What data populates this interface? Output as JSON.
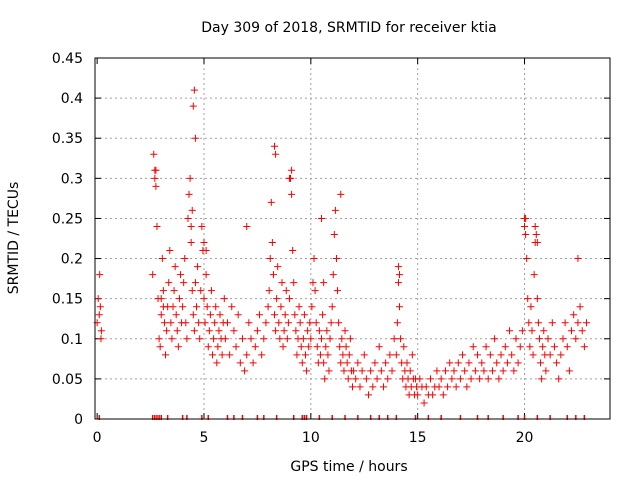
{
  "chart_data": {
    "type": "scatter",
    "title": "Day 309 of 2018, SRMTID for receiver ktia",
    "xlabel": "GPS time / hours",
    "ylabel": "SRMTID / TECUs",
    "xlim": [
      -0.1,
      24
    ],
    "ylim": [
      0,
      0.45
    ],
    "x_ticks": [
      0,
      5,
      10,
      15,
      20
    ],
    "x_tick_labels": [
      "0",
      "5",
      "10",
      "15",
      "20"
    ],
    "y_ticks": [
      0,
      0.05,
      0.1,
      0.15,
      0.2,
      0.25,
      0.3,
      0.35,
      0.4,
      0.45
    ],
    "y_tick_labels": [
      "0",
      "0.05",
      "0.1",
      "0.15",
      "0.2",
      "0.25",
      "0.3",
      "0.35",
      "0.4",
      "0.45"
    ],
    "grid": true,
    "marker": "+",
    "marker_color": "#ff0000",
    "series": [
      {
        "name": "SRMTID",
        "x": [
          0.0,
          0.05,
          0.1,
          0.12,
          0.15,
          0.18,
          0.2,
          2.6,
          2.65,
          2.7,
          2.75,
          2.8,
          2.85,
          2.9,
          2.95,
          3.0,
          3.05,
          3.1,
          3.15,
          3.2,
          3.25,
          3.3,
          3.35,
          3.4,
          3.45,
          3.5,
          3.55,
          3.6,
          3.65,
          3.7,
          3.75,
          3.8,
          3.85,
          3.9,
          3.95,
          4.0,
          4.05,
          4.1,
          4.15,
          4.2,
          4.25,
          4.3,
          4.35,
          4.4,
          4.45,
          4.5,
          4.55,
          4.6,
          4.65,
          4.7,
          4.75,
          4.8,
          4.85,
          4.9,
          4.95,
          5.0,
          5.05,
          5.1,
          5.15,
          5.2,
          5.25,
          5.3,
          5.35,
          5.4,
          5.45,
          5.5,
          5.55,
          5.6,
          5.65,
          5.7,
          5.75,
          5.8,
          5.85,
          5.9,
          5.95,
          6.0,
          6.1,
          6.2,
          6.3,
          6.4,
          6.5,
          6.6,
          6.7,
          6.8,
          6.9,
          7.0,
          7.1,
          7.2,
          7.3,
          7.4,
          7.5,
          7.6,
          7.7,
          7.8,
          7.9,
          8.0,
          8.05,
          8.1,
          8.15,
          8.2,
          8.25,
          8.3,
          8.35,
          8.4,
          8.45,
          8.5,
          8.55,
          8.6,
          8.65,
          8.7,
          8.75,
          8.8,
          8.85,
          8.9,
          8.95,
          9.0,
          9.05,
          9.1,
          9.15,
          9.2,
          9.25,
          9.3,
          9.35,
          9.4,
          9.45,
          9.5,
          9.55,
          9.6,
          9.65,
          9.7,
          9.75,
          9.8,
          9.85,
          9.9,
          9.95,
          10.0,
          10.05,
          10.1,
          10.15,
          10.2,
          10.25,
          10.3,
          10.35,
          10.4,
          10.45,
          10.5,
          10.55,
          10.6,
          10.65,
          10.7,
          10.75,
          10.8,
          10.85,
          10.9,
          10.95,
          11.0,
          11.05,
          11.1,
          11.15,
          11.2,
          11.25,
          11.3,
          11.35,
          11.4,
          11.45,
          11.5,
          11.55,
          11.6,
          11.65,
          11.7,
          11.75,
          11.8,
          11.85,
          11.9,
          11.95,
          12.0,
          12.1,
          12.2,
          12.3,
          12.4,
          12.5,
          12.6,
          12.7,
          12.8,
          12.9,
          13.0,
          13.1,
          13.2,
          13.3,
          13.4,
          13.5,
          13.6,
          13.7,
          13.8,
          13.9,
          14.0,
          14.05,
          14.1,
          14.15,
          14.2,
          14.25,
          14.3,
          14.35,
          14.4,
          14.45,
          14.5,
          14.55,
          14.6,
          14.65,
          14.7,
          14.75,
          14.8,
          14.85,
          14.9,
          14.95,
          15.0,
          15.1,
          15.2,
          15.3,
          15.4,
          15.5,
          15.6,
          15.7,
          15.8,
          15.9,
          16.0,
          16.1,
          16.2,
          16.3,
          16.4,
          16.5,
          16.6,
          16.7,
          16.8,
          16.9,
          17.0,
          17.1,
          17.2,
          17.3,
          17.4,
          17.5,
          17.6,
          17.7,
          17.8,
          17.9,
          18.0,
          18.1,
          18.2,
          18.3,
          18.4,
          18.5,
          18.6,
          18.7,
          18.8,
          18.9,
          19.0,
          19.1,
          19.2,
          19.3,
          19.4,
          19.5,
          19.6,
          19.7,
          19.8,
          19.9,
          20.0,
          20.05,
          20.1,
          20.15,
          20.2,
          20.25,
          20.3,
          20.35,
          20.4,
          20.45,
          20.5,
          20.55,
          20.6,
          20.65,
          20.7,
          20.75,
          20.8,
          20.85,
          20.9,
          20.95,
          21.0,
          21.1,
          21.2,
          21.3,
          21.4,
          21.5,
          21.6,
          21.7,
          21.8,
          21.9,
          22.0,
          22.1,
          22.2,
          22.3,
          22.4,
          22.5,
          22.6,
          22.7,
          22.8,
          22.9,
          4.5,
          4.55,
          4.6,
          8.3,
          8.35,
          9.0,
          9.1,
          11.4,
          14.1,
          14.15,
          20.0,
          20.05,
          20.5,
          20.6,
          22.5,
          2.7,
          2.75,
          3.0,
          3.1,
          4.4,
          4.45,
          5.0,
          5.1,
          7.0,
          10.5,
          10.6
        ],
        "y": [
          0.12,
          0.15,
          0.13,
          0.18,
          0.14,
          0.1,
          0.11,
          0.18,
          0.33,
          0.31,
          0.29,
          0.24,
          0.15,
          0.1,
          0.09,
          0.13,
          0.2,
          0.16,
          0.12,
          0.08,
          0.11,
          0.14,
          0.17,
          0.21,
          0.12,
          0.1,
          0.14,
          0.16,
          0.19,
          0.13,
          0.11,
          0.09,
          0.15,
          0.18,
          0.12,
          0.14,
          0.17,
          0.2,
          0.12,
          0.1,
          0.25,
          0.28,
          0.3,
          0.22,
          0.16,
          0.13,
          0.11,
          0.17,
          0.14,
          0.19,
          0.12,
          0.1,
          0.16,
          0.24,
          0.21,
          0.15,
          0.12,
          0.18,
          0.14,
          0.09,
          0.11,
          0.13,
          0.16,
          0.08,
          0.1,
          0.12,
          0.14,
          0.07,
          0.09,
          0.11,
          0.13,
          0.1,
          0.08,
          0.12,
          0.15,
          0.1,
          0.12,
          0.08,
          0.14,
          0.11,
          0.09,
          0.13,
          0.07,
          0.1,
          0.06,
          0.08,
          0.12,
          0.1,
          0.07,
          0.09,
          0.11,
          0.13,
          0.08,
          0.1,
          0.12,
          0.14,
          0.16,
          0.2,
          0.27,
          0.22,
          0.18,
          0.13,
          0.11,
          0.15,
          0.19,
          0.12,
          0.1,
          0.14,
          0.17,
          0.09,
          0.11,
          0.13,
          0.16,
          0.1,
          0.12,
          0.15,
          0.3,
          0.28,
          0.21,
          0.17,
          0.13,
          0.11,
          0.08,
          0.1,
          0.14,
          0.12,
          0.09,
          0.07,
          0.1,
          0.13,
          0.08,
          0.06,
          0.11,
          0.09,
          0.12,
          0.1,
          0.14,
          0.17,
          0.2,
          0.16,
          0.12,
          0.09,
          0.07,
          0.11,
          0.08,
          0.1,
          0.13,
          0.07,
          0.05,
          0.09,
          0.11,
          0.08,
          0.06,
          0.1,
          0.12,
          0.14,
          0.18,
          0.23,
          0.26,
          0.2,
          0.16,
          0.12,
          0.09,
          0.07,
          0.1,
          0.08,
          0.06,
          0.11,
          0.09,
          0.07,
          0.05,
          0.08,
          0.1,
          0.06,
          0.04,
          0.06,
          0.05,
          0.07,
          0.04,
          0.06,
          0.08,
          0.05,
          0.03,
          0.06,
          0.04,
          0.07,
          0.05,
          0.09,
          0.06,
          0.04,
          0.07,
          0.05,
          0.08,
          0.06,
          0.1,
          0.08,
          0.12,
          0.17,
          0.14,
          0.1,
          0.07,
          0.05,
          0.09,
          0.06,
          0.04,
          0.07,
          0.05,
          0.03,
          0.06,
          0.04,
          0.08,
          0.05,
          0.03,
          0.05,
          0.04,
          0.03,
          0.05,
          0.04,
          0.02,
          0.04,
          0.03,
          0.05,
          0.03,
          0.04,
          0.06,
          0.04,
          0.05,
          0.03,
          0.06,
          0.04,
          0.07,
          0.05,
          0.06,
          0.04,
          0.07,
          0.05,
          0.08,
          0.06,
          0.04,
          0.07,
          0.05,
          0.09,
          0.06,
          0.08,
          0.05,
          0.07,
          0.06,
          0.09,
          0.05,
          0.08,
          0.06,
          0.1,
          0.07,
          0.05,
          0.08,
          0.06,
          0.09,
          0.07,
          0.11,
          0.08,
          0.06,
          0.1,
          0.07,
          0.09,
          0.11,
          0.24,
          0.25,
          0.2,
          0.15,
          0.12,
          0.09,
          0.14,
          0.11,
          0.08,
          0.18,
          0.22,
          0.23,
          0.15,
          0.12,
          0.1,
          0.07,
          0.05,
          0.09,
          0.11,
          0.08,
          0.06,
          0.1,
          0.08,
          0.12,
          0.09,
          0.07,
          0.05,
          0.08,
          0.1,
          0.12,
          0.09,
          0.06,
          0.11,
          0.13,
          0.1,
          0.12,
          0.14,
          0.11,
          0.09,
          0.12,
          0.39,
          0.41,
          0.35,
          0.34,
          0.33,
          0.3,
          0.31,
          0.28,
          0.19,
          0.18,
          0.25,
          0.23,
          0.24,
          0.22,
          0.2,
          0.3,
          0.31,
          0.15,
          0.14,
          0.24,
          0.26,
          0.22,
          0.21,
          0.24,
          0.25,
          0.17
        ]
      }
    ]
  }
}
